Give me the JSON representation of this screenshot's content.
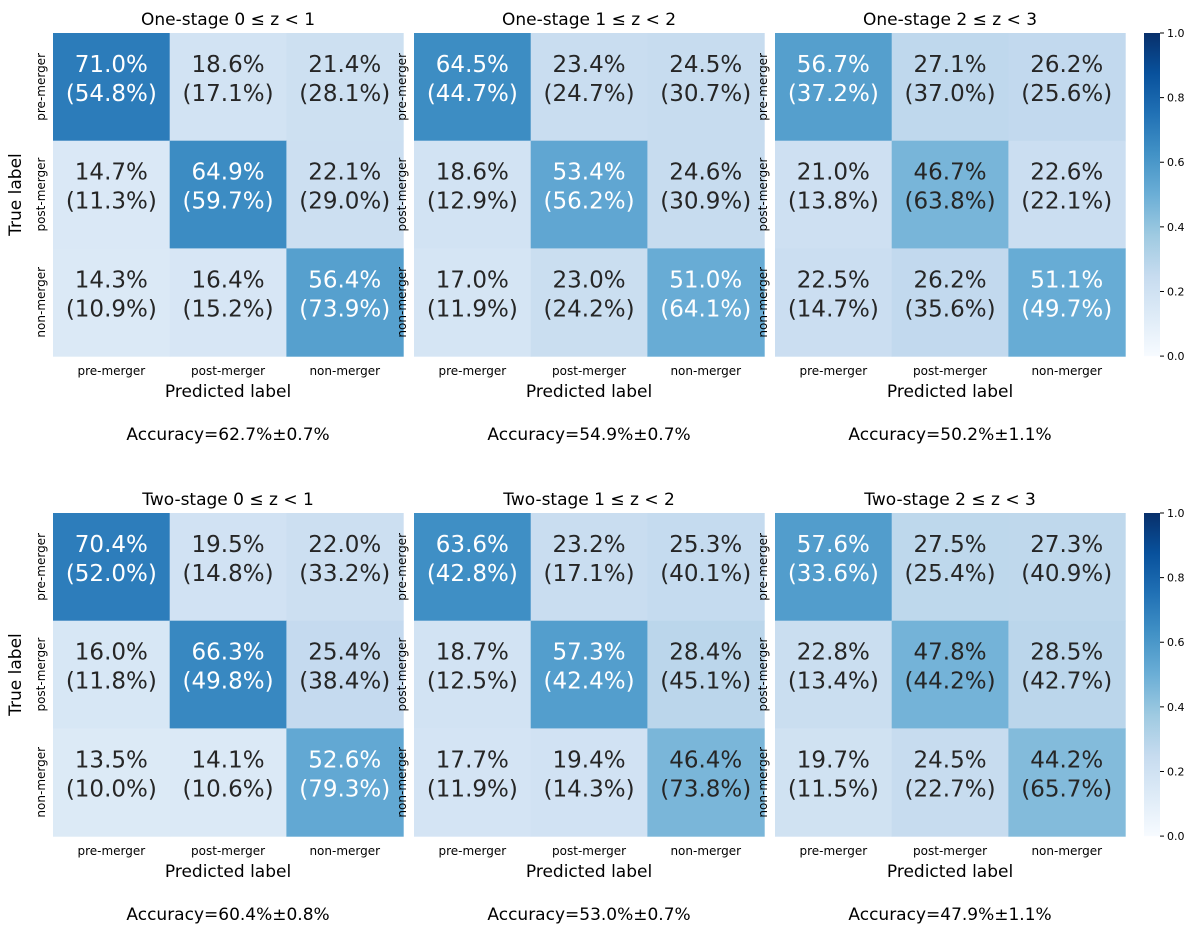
{
  "chart_data": [
    {
      "type": "heatmap",
      "title": "One-stage 0 ≤ z < 1",
      "xlabel": "Predicted label",
      "ylabel": "True label",
      "x_categories": [
        "pre-merger",
        "post-merger",
        "non-merger"
      ],
      "y_categories": [
        "pre-merger",
        "post-merger",
        "non-merger"
      ],
      "values": [
        [
          0.71,
          0.186,
          0.214
        ],
        [
          0.147,
          0.649,
          0.221
        ],
        [
          0.143,
          0.164,
          0.564
        ]
      ],
      "cell_text": [
        [
          "71.0%",
          "18.6%",
          "21.4%"
        ],
        [
          "14.7%",
          "64.9%",
          "22.1%"
        ],
        [
          "14.3%",
          "16.4%",
          "56.4%"
        ]
      ],
      "cell_subtext": [
        [
          "(54.8%)",
          "(17.1%)",
          "(28.1%)"
        ],
        [
          "(11.3%)",
          "(59.7%)",
          "(29.0%)"
        ],
        [
          "(10.9%)",
          "(15.2%)",
          "(73.9%)"
        ]
      ],
      "accuracy": "Accuracy=62.7%±0.7%"
    },
    {
      "type": "heatmap",
      "title": "One-stage 1 ≤ z < 2",
      "xlabel": "Predicted label",
      "ylabel": "",
      "x_categories": [
        "pre-merger",
        "post-merger",
        "non-merger"
      ],
      "y_categories": [
        "pre-merger",
        "post-merger",
        "non-merger"
      ],
      "values": [
        [
          0.645,
          0.234,
          0.245
        ],
        [
          0.186,
          0.534,
          0.246
        ],
        [
          0.17,
          0.23,
          0.51
        ]
      ],
      "cell_text": [
        [
          "64.5%",
          "23.4%",
          "24.5%"
        ],
        [
          "18.6%",
          "53.4%",
          "24.6%"
        ],
        [
          "17.0%",
          "23.0%",
          "51.0%"
        ]
      ],
      "cell_subtext": [
        [
          "(44.7%)",
          "(24.7%)",
          "(30.7%)"
        ],
        [
          "(12.9%)",
          "(56.2%)",
          "(30.9%)"
        ],
        [
          "(11.9%)",
          "(24.2%)",
          "(64.1%)"
        ]
      ],
      "accuracy": "Accuracy=54.9%±0.7%"
    },
    {
      "type": "heatmap",
      "title": "One-stage 2 ≤ z < 3",
      "xlabel": "Predicted label",
      "ylabel": "",
      "x_categories": [
        "pre-merger",
        "post-merger",
        "non-merger"
      ],
      "y_categories": [
        "pre-merger",
        "post-merger",
        "non-merger"
      ],
      "values": [
        [
          0.567,
          0.271,
          0.262
        ],
        [
          0.21,
          0.467,
          0.226
        ],
        [
          0.225,
          0.262,
          0.511
        ]
      ],
      "cell_text": [
        [
          "56.7%",
          "27.1%",
          "26.2%"
        ],
        [
          "21.0%",
          "46.7%",
          "22.6%"
        ],
        [
          "22.5%",
          "26.2%",
          "51.1%"
        ]
      ],
      "cell_subtext": [
        [
          "(37.2%)",
          "(37.0%)",
          "(25.6%)"
        ],
        [
          "(13.8%)",
          "(63.8%)",
          "(22.1%)"
        ],
        [
          "(14.7%)",
          "(35.6%)",
          "(49.7%)"
        ]
      ],
      "accuracy": "Accuracy=50.2%±1.1%"
    },
    {
      "type": "heatmap",
      "title": "Two-stage 0 ≤ z < 1",
      "xlabel": "Predicted label",
      "ylabel": "True label",
      "x_categories": [
        "pre-merger",
        "post-merger",
        "non-merger"
      ],
      "y_categories": [
        "pre-merger",
        "post-merger",
        "non-merger"
      ],
      "values": [
        [
          0.704,
          0.195,
          0.22
        ],
        [
          0.16,
          0.663,
          0.254
        ],
        [
          0.135,
          0.141,
          0.526
        ]
      ],
      "cell_text": [
        [
          "70.4%",
          "19.5%",
          "22.0%"
        ],
        [
          "16.0%",
          "66.3%",
          "25.4%"
        ],
        [
          "13.5%",
          "14.1%",
          "52.6%"
        ]
      ],
      "cell_subtext": [
        [
          "(52.0%)",
          "(14.8%)",
          "(33.2%)"
        ],
        [
          "(11.8%)",
          "(49.8%)",
          "(38.4%)"
        ],
        [
          "(10.0%)",
          "(10.6%)",
          "(79.3%)"
        ]
      ],
      "accuracy": "Accuracy=60.4%±0.8%"
    },
    {
      "type": "heatmap",
      "title": "Two-stage 1 ≤ z < 2",
      "xlabel": "Predicted label",
      "ylabel": "",
      "x_categories": [
        "pre-merger",
        "post-merger",
        "non-merger"
      ],
      "y_categories": [
        "pre-merger",
        "post-merger",
        "non-merger"
      ],
      "values": [
        [
          0.636,
          0.232,
          0.253
        ],
        [
          0.187,
          0.573,
          0.284
        ],
        [
          0.177,
          0.194,
          0.464
        ]
      ],
      "cell_text": [
        [
          "63.6%",
          "23.2%",
          "25.3%"
        ],
        [
          "18.7%",
          "57.3%",
          "28.4%"
        ],
        [
          "17.7%",
          "19.4%",
          "46.4%"
        ]
      ],
      "cell_subtext": [
        [
          "(42.8%)",
          "(17.1%)",
          "(40.1%)"
        ],
        [
          "(12.5%)",
          "(42.4%)",
          "(45.1%)"
        ],
        [
          "(11.9%)",
          "(14.3%)",
          "(73.8%)"
        ]
      ],
      "accuracy": "Accuracy=53.0%±0.7%"
    },
    {
      "type": "heatmap",
      "title": "Two-stage 2 ≤ z < 3",
      "xlabel": "Predicted label",
      "ylabel": "",
      "x_categories": [
        "pre-merger",
        "post-merger",
        "non-merger"
      ],
      "y_categories": [
        "pre-merger",
        "post-merger",
        "non-merger"
      ],
      "values": [
        [
          0.576,
          0.275,
          0.273
        ],
        [
          0.228,
          0.478,
          0.285
        ],
        [
          0.197,
          0.245,
          0.442
        ]
      ],
      "cell_text": [
        [
          "57.6%",
          "27.5%",
          "27.3%"
        ],
        [
          "22.8%",
          "47.8%",
          "28.5%"
        ],
        [
          "19.7%",
          "24.5%",
          "44.2%"
        ]
      ],
      "cell_subtext": [
        [
          "(33.6%)",
          "(25.4%)",
          "(40.9%)"
        ],
        [
          "(13.4%)",
          "(44.2%)",
          "(42.7%)"
        ],
        [
          "(11.5%)",
          "(22.7%)",
          "(65.7%)"
        ]
      ],
      "accuracy": "Accuracy=47.9%±1.1%"
    }
  ],
  "colorbar": {
    "range": [
      0.0,
      1.0
    ],
    "ticks": [
      "0.0",
      "0.2",
      "0.4",
      "0.6",
      "0.8",
      "1.0"
    ],
    "tick_values": [
      0.0,
      0.2,
      0.4,
      0.6,
      0.8,
      1.0
    ],
    "colormap": "Blues",
    "colors": [
      "#f7fbff",
      "#deebf7",
      "#c6dbef",
      "#9ecae1",
      "#6baed6",
      "#4292c6",
      "#2171b5",
      "#08519c",
      "#08306b"
    ]
  }
}
